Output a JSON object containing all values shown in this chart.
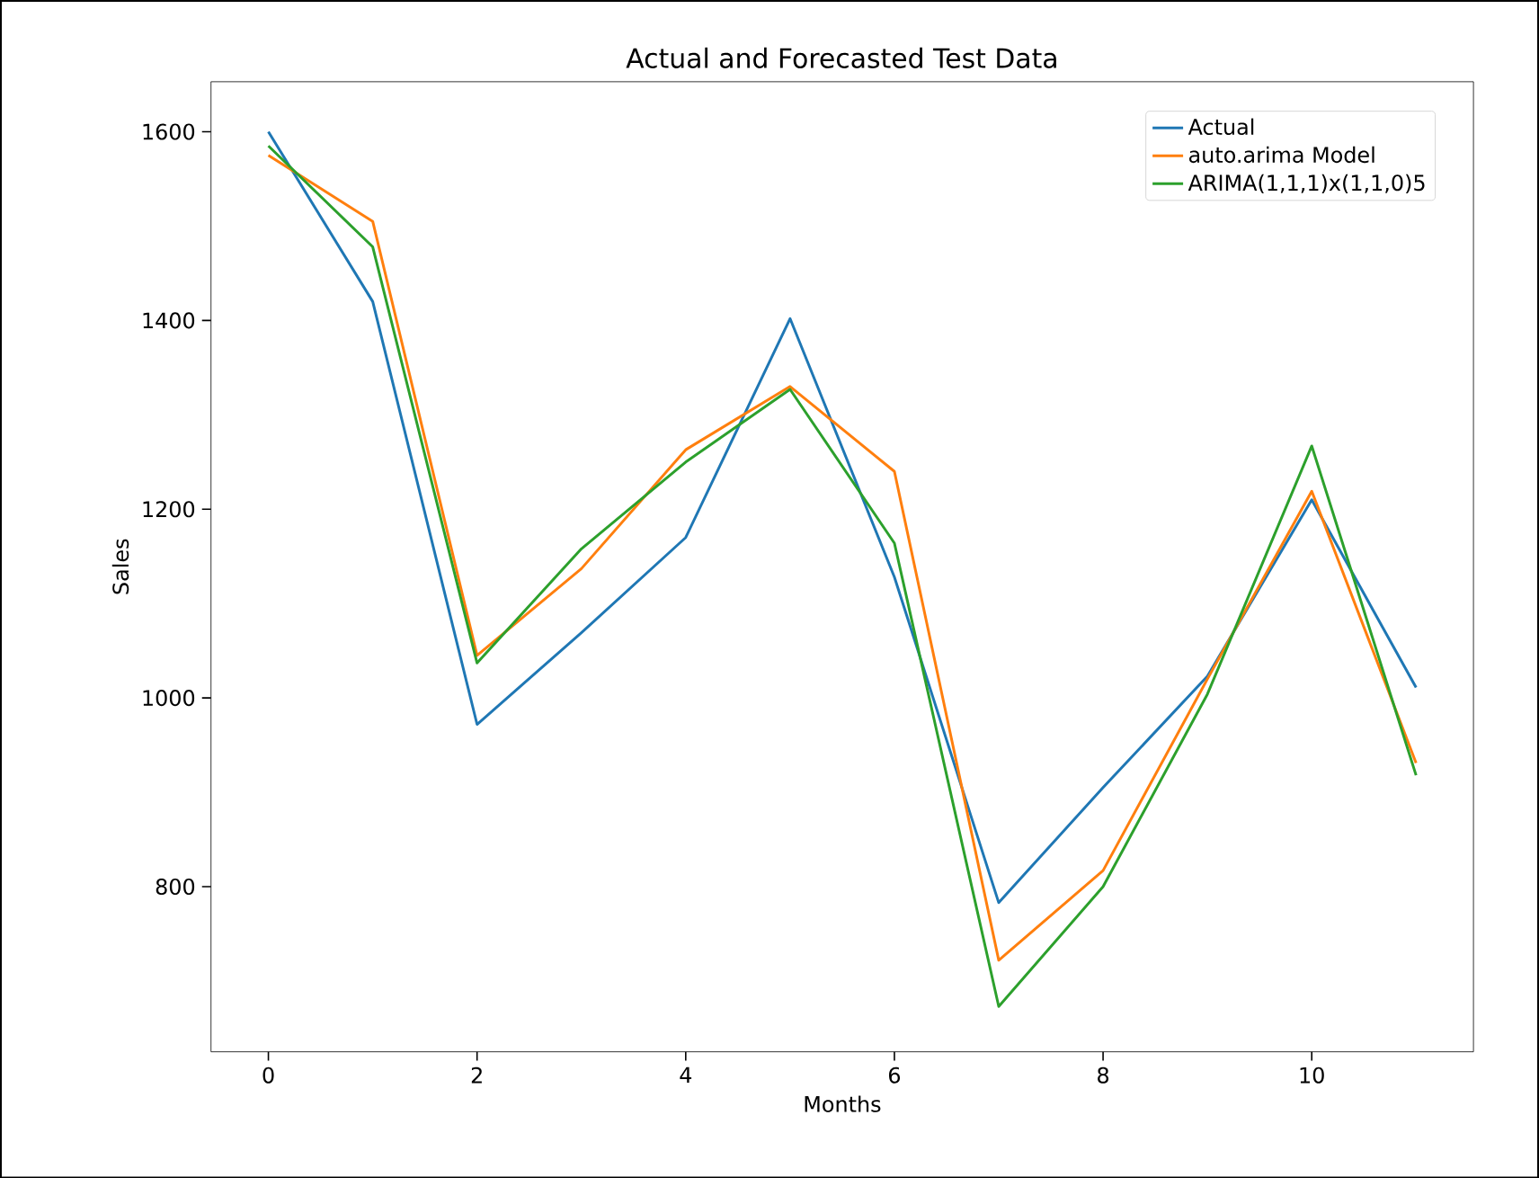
{
  "chart_data": {
    "type": "line",
    "title": "Actual and Forecasted Test Data",
    "xlabel": "Months",
    "ylabel": "Sales",
    "x": [
      0,
      1,
      2,
      3,
      4,
      5,
      6,
      7,
      8,
      9,
      10,
      11
    ],
    "series": [
      {
        "name": "Actual",
        "color": "#1f77b4",
        "values": [
          1600,
          1420,
          972,
          1069,
          1170,
          1402,
          1128,
          783,
          905,
          1023,
          1210,
          1011
        ]
      },
      {
        "name": "auto.arima Model",
        "color": "#ff7f0e",
        "values": [
          1575,
          1505,
          1045,
          1137,
          1263,
          1330,
          1240,
          722,
          817,
          1020,
          1219,
          931
        ]
      },
      {
        "name": "ARIMA(1,1,1)x(1,1,0)5",
        "color": "#2ca02c",
        "values": [
          1585,
          1478,
          1037,
          1158,
          1250,
          1327,
          1164,
          673,
          800,
          1004,
          1267,
          918
        ]
      }
    ],
    "xlim": [
      -0.55,
      11.55
    ],
    "ylim": [
      625,
      1653
    ],
    "xticks": [
      0,
      2,
      4,
      6,
      8,
      10
    ],
    "yticks": [
      800,
      1000,
      1200,
      1400,
      1600
    ],
    "legend": "top right",
    "grid": false,
    "marker": "none",
    "line_style": "solid"
  }
}
